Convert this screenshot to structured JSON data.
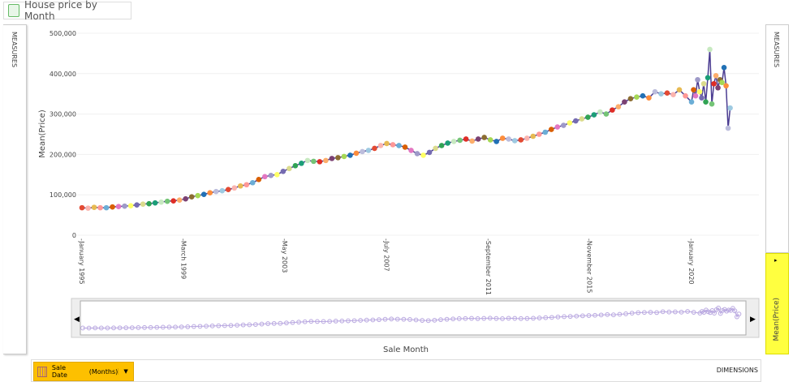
{
  "title": "House price by Month",
  "left_panel": "MEASURES",
  "right_panel": "MEASURES",
  "measure_pill": "Mean(Price)",
  "dimension_pill": {
    "field": "Sale Date",
    "unit": "(Months)"
  },
  "dimensions_label": "DIMENSIONS",
  "chart_data": {
    "type": "line",
    "title": "House price by Month",
    "xlabel": "Sale Month",
    "ylabel": "Mean(Price)",
    "ylim": [
      0,
      500000
    ],
    "yticks": [
      "0",
      "100,000",
      "200,000",
      "300,000",
      "400,000",
      "500,000"
    ],
    "yticks_values": [
      0,
      100000,
      200000,
      300000,
      400000,
      500000
    ],
    "xticks": [
      {
        "label": "January 1995",
        "x": 1995.0
      },
      {
        "label": "March 1999",
        "x": 1999.17
      },
      {
        "label": "May 2003",
        "x": 2003.33
      },
      {
        "label": "July 2007",
        "x": 2007.5
      },
      {
        "label": "September 2011",
        "x": 2011.67
      },
      {
        "label": "November 2015",
        "x": 2015.83
      },
      {
        "label": "January 2020",
        "x": 2020.0
      }
    ],
    "xlim": [
      1995.0,
      2021.7
    ],
    "line_color": "#4b3c91",
    "quarterly_start": 1995.0,
    "quarterly_values_k": [
      68,
      67,
      69,
      68,
      68,
      70,
      71,
      72,
      73,
      75,
      77,
      78,
      80,
      82,
      84,
      85,
      87,
      90,
      95,
      98,
      101,
      105,
      108,
      110,
      113,
      117,
      122,
      125,
      130,
      138,
      145,
      148,
      150,
      158,
      165,
      172,
      178,
      185,
      183,
      182,
      185,
      190,
      192,
      195,
      198,
      203,
      207,
      210,
      215,
      222,
      227,
      224,
      222,
      218,
      210,
      202,
      198,
      205,
      215,
      222,
      228,
      232,
      235,
      238,
      233,
      238,
      242,
      236,
      232,
      240,
      238,
      234,
      236,
      240,
      245,
      250,
      255,
      262,
      268,
      272,
      278,
      283,
      288,
      292,
      298,
      305,
      300,
      310,
      318,
      330,
      338,
      342,
      345,
      340,
      355,
      350,
      352,
      348,
      360,
      345
    ],
    "monthly_start": 2020.0,
    "monthly_values_k": [
      330,
      360,
      345,
      385,
      355,
      340,
      375,
      330,
      390,
      460,
      325,
      375,
      395,
      365,
      385,
      378,
      415,
      370,
      265,
      315
    ]
  }
}
